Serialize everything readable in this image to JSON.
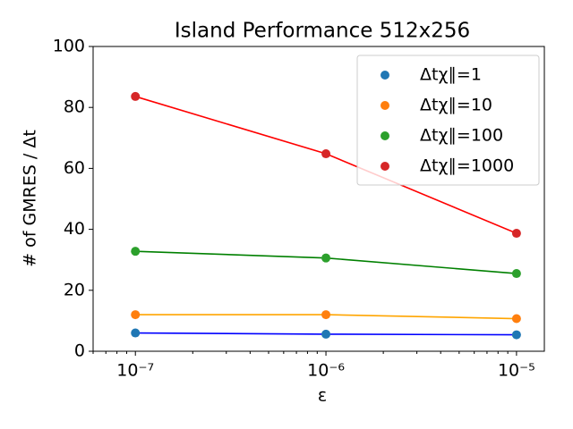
{
  "chart_data": {
    "type": "line",
    "title": "Island Performance 512x256",
    "x_label": "ε",
    "y_label": "# of GMRES / Δt",
    "x": [
      1e-07,
      1e-06,
      1e-05
    ],
    "x_scale": "log",
    "xlim": [
      6e-08,
      1.4e-05
    ],
    "xticks": [
      {
        "value": 1e-07,
        "label": "10⁻⁷"
      },
      {
        "value": 1e-06,
        "label": "10⁻⁶"
      },
      {
        "value": 1e-05,
        "label": "10⁻⁵"
      }
    ],
    "xminorticks": [
      6e-08,
      7e-08,
      8e-08,
      9e-08,
      2e-07,
      3e-07,
      4e-07,
      5e-07,
      6e-07,
      7e-07,
      8e-07,
      9e-07,
      2e-06,
      3e-06,
      4e-06,
      5e-06,
      6e-06,
      7e-06,
      8e-06,
      9e-06
    ],
    "ylim": [
      0,
      100
    ],
    "yticks": [
      0,
      20,
      40,
      60,
      80,
      100
    ],
    "grid": false,
    "legend_position": "upper right",
    "series": [
      {
        "name": "Δtχ∥=1",
        "color": "#1f77b4",
        "line_color": "blue",
        "values": [
          6.0,
          5.6,
          5.4
        ]
      },
      {
        "name": "Δtχ∥=10",
        "color": "#ff7f0e",
        "line_color": "orange",
        "values": [
          12.0,
          12.0,
          10.7
        ]
      },
      {
        "name": "Δtχ∥=100",
        "color": "#2ca02c",
        "line_color": "green",
        "values": [
          32.8,
          30.6,
          25.5
        ]
      },
      {
        "name": "Δtχ∥=1000",
        "color": "#d62728",
        "line_color": "red",
        "values": [
          83.6,
          64.8,
          38.7
        ]
      }
    ]
  }
}
